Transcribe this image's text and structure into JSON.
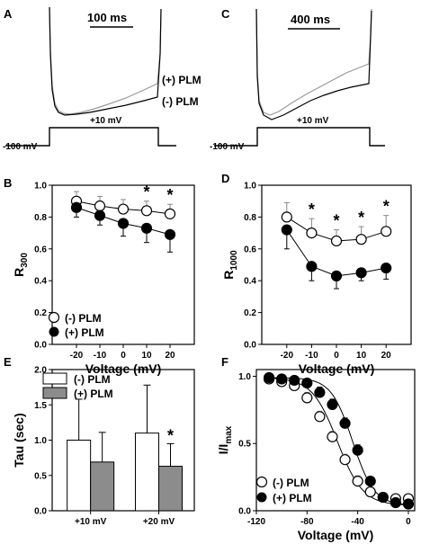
{
  "colors": {
    "control": "#000000",
    "plm": "#999999",
    "bar_plm": "#8c8c8c",
    "open": "#ffffff"
  },
  "panels": {
    "A": {
      "label": "A",
      "scale_bar": "100 ms",
      "voltage_step": "+10 mV",
      "holding": "-100 mV",
      "trace_labels": [
        "(+) PLM",
        "(-)  PLM"
      ]
    },
    "C": {
      "label": "C",
      "scale_bar": "400 ms",
      "voltage_step": "+10 mV",
      "holding": "-100 mV"
    },
    "B": {
      "label": "B"
    },
    "D": {
      "label": "D"
    },
    "E": {
      "label": "E"
    },
    "F": {
      "label": "F"
    }
  },
  "chart_data": [
    {
      "panel": "B",
      "type": "scatter",
      "xlabel": "Voltage (mV)",
      "ylabel": "R",
      "ylabel_sub": "300",
      "xlim": [
        -25,
        25
      ],
      "ylim": [
        0.0,
        1.0
      ],
      "xticks": [
        -20,
        -10,
        0,
        10,
        20
      ],
      "yticks": [
        0.0,
        0.2,
        0.4,
        0.6,
        0.8,
        1.0
      ],
      "ytick_labels": [
        "0.0",
        "0.2",
        "0.4",
        "0.6",
        "0.8",
        "1.0"
      ],
      "series": [
        {
          "name": "(-)  PLM",
          "marker": "open",
          "x": [
            -20,
            -10,
            0,
            10,
            20
          ],
          "y": [
            0.9,
            0.87,
            0.85,
            0.84,
            0.82
          ],
          "err": [
            0.06,
            0.06,
            0.06,
            0.06,
            0.06
          ]
        },
        {
          "name": "(+) PLM",
          "marker": "filled",
          "x": [
            -20,
            -10,
            0,
            10,
            20
          ],
          "y": [
            0.86,
            0.81,
            0.76,
            0.73,
            0.69
          ],
          "err": [
            0.06,
            0.06,
            0.08,
            0.09,
            0.11
          ]
        }
      ],
      "significance_x": [
        10,
        20
      ],
      "significance_label": "*"
    },
    {
      "panel": "D",
      "type": "scatter",
      "xlabel": "Voltage (mV)",
      "ylabel": "R",
      "ylabel_sub": "1000",
      "xlim": [
        -25,
        25
      ],
      "ylim": [
        0.0,
        1.0
      ],
      "xticks": [
        -20,
        -10,
        0,
        10,
        20
      ],
      "yticks": [
        0.0,
        0.2,
        0.4,
        0.6,
        0.8,
        1.0
      ],
      "ytick_labels": [
        "0.0",
        "0.2",
        "0.4",
        "0.6",
        "0.8",
        "1.0"
      ],
      "series": [
        {
          "name": "(-)  PLM",
          "marker": "open",
          "x": [
            -20,
            -10,
            0,
            10,
            20
          ],
          "y": [
            0.8,
            0.7,
            0.65,
            0.66,
            0.71
          ],
          "err": [
            0.09,
            0.09,
            0.07,
            0.08,
            0.1
          ]
        },
        {
          "name": "(+) PLM",
          "marker": "filled",
          "x": [
            -20,
            -10,
            0,
            10,
            20
          ],
          "y": [
            0.72,
            0.49,
            0.43,
            0.45,
            0.48
          ],
          "err": [
            0.12,
            0.09,
            0.08,
            0.05,
            0.07
          ]
        }
      ],
      "significance_x": [
        -10,
        0,
        10,
        20
      ],
      "significance_label": "*"
    },
    {
      "panel": "E",
      "type": "bar",
      "ylabel": "Tau (sec)",
      "ylim": [
        0.0,
        2.0
      ],
      "yticks": [
        0.0,
        0.5,
        1.0,
        1.5,
        2.0
      ],
      "ytick_labels": [
        "0.0",
        "0.5",
        "1.0",
        "1.5",
        "2.0"
      ],
      "categories": [
        "+10 mV",
        "+20 mV"
      ],
      "series": [
        {
          "name": "(-)  PLM",
          "values": [
            1.0,
            1.1
          ],
          "err": [
            0.58,
            0.68
          ]
        },
        {
          "name": "(+) PLM",
          "values": [
            0.69,
            0.63
          ],
          "err": [
            0.42,
            0.32
          ]
        }
      ],
      "significance_label": "*",
      "significance_category": "+20 mV"
    },
    {
      "panel": "F",
      "type": "scatter",
      "xlabel": "Voltage (mV)",
      "ylabel": "I/I",
      "ylabel_sub": "max",
      "xlim": [
        -120,
        5
      ],
      "ylim": [
        0.0,
        1.05
      ],
      "xticks": [
        -120,
        -80,
        -40,
        0
      ],
      "yticks": [
        0.0,
        0.5,
        1.0
      ],
      "ytick_labels": [
        "0.0",
        "0.5",
        "1.0"
      ],
      "series": [
        {
          "name": "(-)  PLM",
          "marker": "open",
          "x": [
            -110,
            -100,
            -90,
            -80,
            -70,
            -60,
            -50,
            -40,
            -30,
            -20,
            -10,
            0
          ],
          "y": [
            0.98,
            0.96,
            0.93,
            0.84,
            0.7,
            0.55,
            0.38,
            0.22,
            0.14,
            0.1,
            0.09,
            0.09
          ],
          "err": [
            0.02,
            0.02,
            0.03,
            0.04,
            0.04,
            0.04,
            0.04,
            0.04,
            0.03,
            0.02,
            0.02,
            0.02
          ]
        },
        {
          "name": "(+) PLM",
          "marker": "filled",
          "x": [
            -110,
            -100,
            -90,
            -80,
            -70,
            -60,
            -50,
            -40,
            -30,
            -20,
            -10,
            0
          ],
          "y": [
            0.99,
            0.98,
            0.97,
            0.95,
            0.88,
            0.79,
            0.65,
            0.45,
            0.22,
            0.1,
            0.06,
            0.05
          ],
          "err": [
            0.02,
            0.02,
            0.02,
            0.03,
            0.04,
            0.04,
            0.04,
            0.04,
            0.03,
            0.02,
            0.02,
            0.02
          ]
        }
      ],
      "fits": [
        {
          "series": "(-)  PLM",
          "v_half": -56,
          "k": 10
        },
        {
          "series": "(+) PLM",
          "v_half": -44,
          "k": 8.5
        }
      ]
    }
  ]
}
